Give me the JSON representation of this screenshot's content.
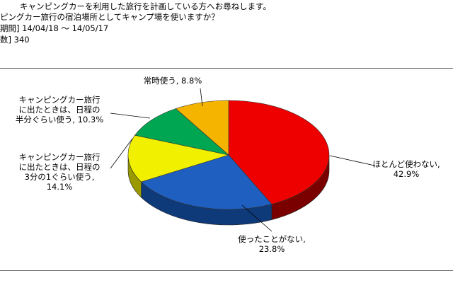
{
  "header": {
    "line1": "キャンピングカーを利用した旅行を計画している方へお尋ねします。",
    "line2": "ピングカー旅行の宿泊場所としてキャンプ場を使いますか？",
    "line3": "期間] 14/04/18 ～ 14/05/17",
    "line4": "数] 340"
  },
  "chart_data": {
    "type": "pie",
    "title": "",
    "start_angle_deg": -90,
    "direction": "clockwise",
    "slices": [
      {
        "label_lines": [
          "ほとんど使わない,",
          "42.9%"
        ],
        "value": 42.9,
        "color": "#ee0000",
        "side_color": "#7a0000"
      },
      {
        "label_lines": [
          "使ったことがない,",
          "23.8%"
        ],
        "value": 23.8,
        "color": "#1f5fbf",
        "side_color": "#0f3a7a"
      },
      {
        "label_lines": [
          "キャンピングカー旅行",
          "に出たときは、日程の",
          "3分の1ぐらい使う,",
          "14.1%"
        ],
        "value": 14.1,
        "color": "#f0f000",
        "side_color": "#9a9a00"
      },
      {
        "label_lines": [
          "キャンピングカー旅行",
          "に出たときは、日程の",
          "半分ぐらい使う, 10.3%"
        ],
        "value": 10.3,
        "color": "#00a651",
        "side_color": "#006a33"
      },
      {
        "label_lines": [
          "常時使う, 8.8%"
        ],
        "value": 8.8,
        "color": "#f5b400",
        "side_color": "#9a6f00"
      }
    ]
  }
}
